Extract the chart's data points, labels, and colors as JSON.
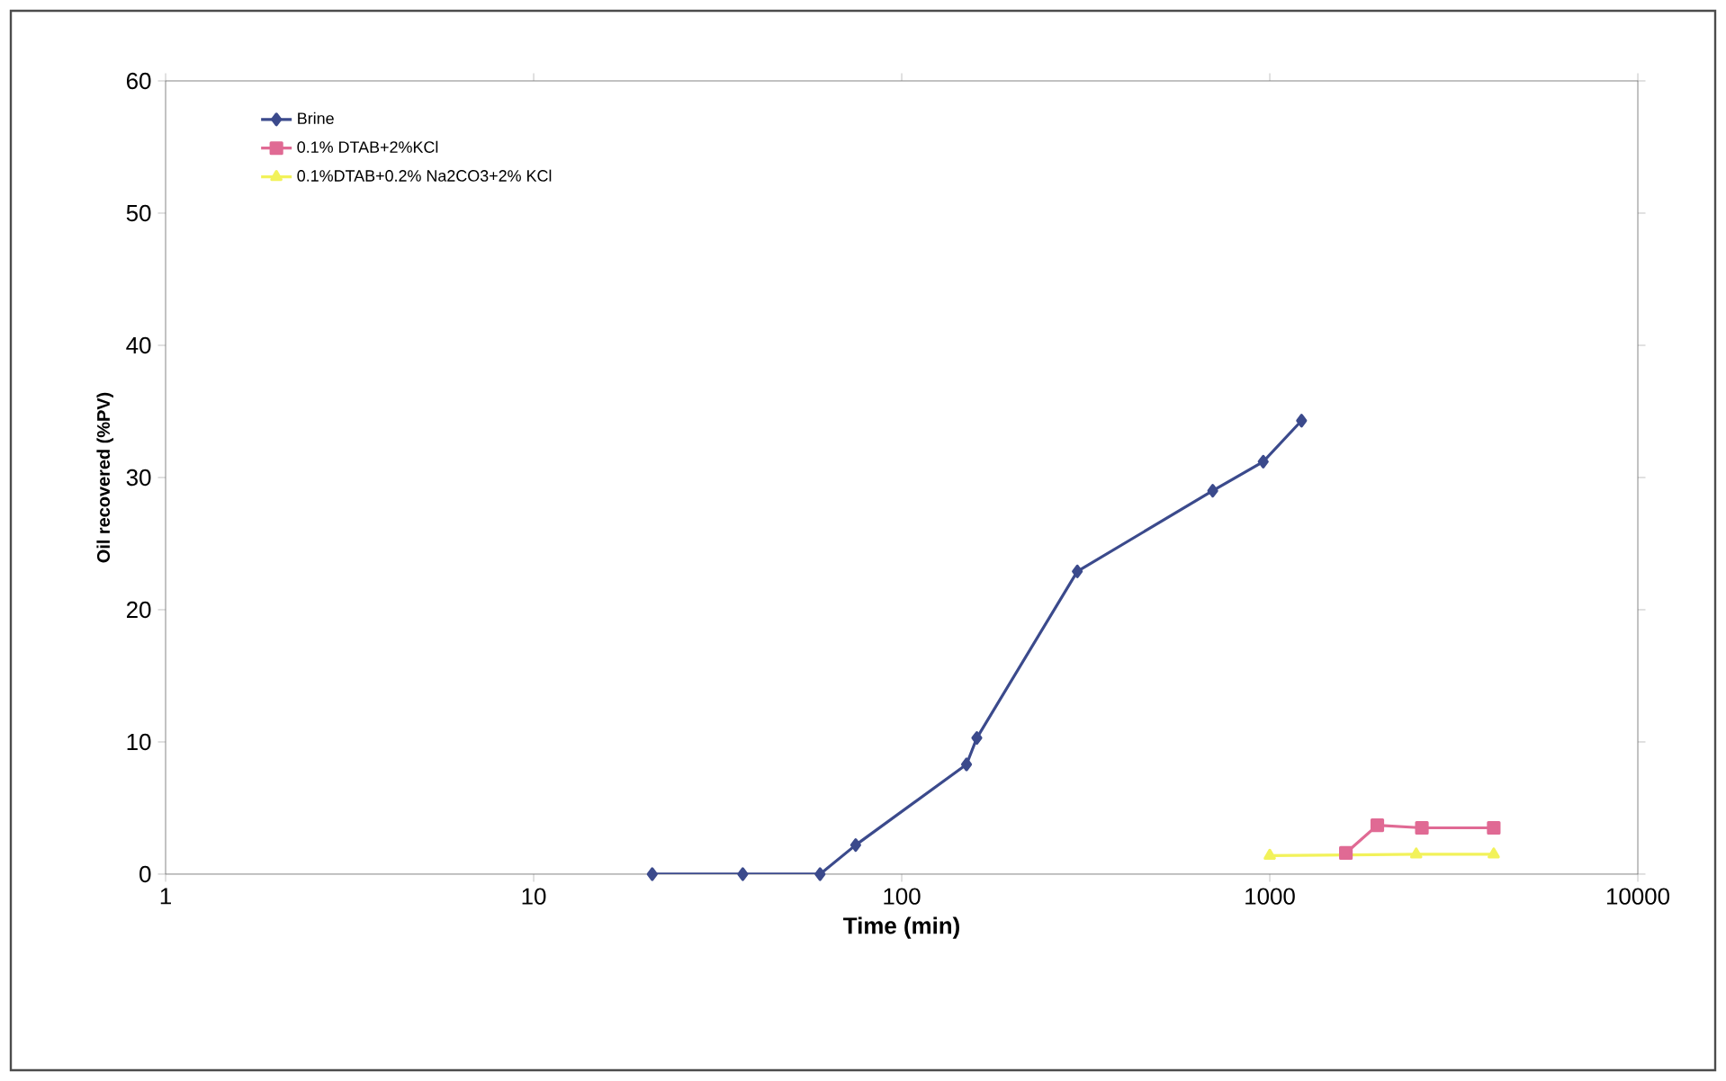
{
  "chart_data": {
    "type": "line",
    "xlabel": "Time (min)",
    "ylabel": "Oil recovered (%PV)",
    "log": "x",
    "xlim": [
      1,
      10000
    ],
    "xticks": [
      1,
      10,
      100,
      1000,
      10000
    ],
    "ylim": [
      0,
      60
    ],
    "yticks": [
      0,
      10,
      20,
      30,
      40,
      50,
      60
    ],
    "grid": false,
    "legend": "top left",
    "series": [
      {
        "name": "Brine",
        "color": "#3b4a8c",
        "marker": "diamond",
        "x": [
          21,
          37,
          60,
          75,
          150,
          160,
          300,
          700,
          960,
          1220
        ],
        "values": [
          0,
          0,
          0,
          2.2,
          8.3,
          10.3,
          22.9,
          29,
          31.2,
          34.3
        ]
      },
      {
        "name": "0.1% DTAB+2%KCl",
        "color": "#e06a94",
        "marker": "square",
        "x": [
          1610,
          1960,
          2590,
          4060
        ],
        "values": [
          1.6,
          3.7,
          3.5,
          3.5
        ]
      },
      {
        "name": "0.1%DTAB+0.2% Na2CO3+2% KCl",
        "color": "#f2f25a",
        "marker": "triangle",
        "x": [
          1000,
          2500,
          4060
        ],
        "values": [
          1.4,
          1.5,
          1.5
        ]
      }
    ]
  }
}
